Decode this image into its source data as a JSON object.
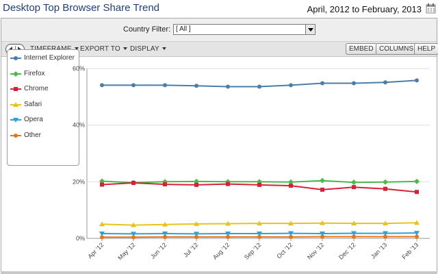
{
  "header": {
    "title": "Desktop Top Browser Share Trend",
    "date_range": "April, 2012 to February, 2013"
  },
  "filter": {
    "label": "Country Filter:",
    "selected": "[ All ]"
  },
  "toolbar": {
    "timeframe": "TIMEFRAME",
    "export": "EXPORT TO",
    "display": "DISPLAY",
    "embed": "EMBED",
    "columns": "COLUMNS",
    "help": "HELP"
  },
  "colors": {
    "Internet Explorer": "#4a7ea8",
    "Firefox": "#4cb848",
    "Chrome": "#d8203a",
    "Safari": "#e8c21e",
    "Opera": "#2ba3d8",
    "Other": "#e5741b"
  },
  "chart_data": {
    "type": "line",
    "title": "",
    "xlabel": "",
    "ylabel": "",
    "ylim": [
      0,
      60
    ],
    "y_ticks": [
      "0%",
      "20%",
      "40%",
      "60%"
    ],
    "grid": true,
    "legend_placement": "left",
    "categories": [
      "Apr '12",
      "May '12",
      "Jun '12",
      "Jul '12",
      "Aug '12",
      "Sep '12",
      "Oct '12",
      "Nov '12",
      "Dec '12",
      "Jan '13",
      "Feb '13"
    ],
    "series": [
      {
        "name": "Internet Explorer",
        "marker": "circle",
        "values": [
          54.1,
          54.1,
          54.1,
          53.9,
          53.6,
          53.6,
          54.1,
          54.8,
          54.8,
          55.1,
          55.8
        ]
      },
      {
        "name": "Firefox",
        "marker": "diamond",
        "values": [
          20.2,
          19.7,
          20.0,
          20.1,
          20.0,
          20.0,
          19.9,
          20.4,
          19.8,
          19.9,
          20.1
        ]
      },
      {
        "name": "Chrome",
        "marker": "square",
        "values": [
          19.0,
          19.6,
          19.1,
          18.9,
          19.2,
          18.9,
          18.6,
          17.2,
          18.1,
          17.5,
          16.4
        ]
      },
      {
        "name": "Safari",
        "marker": "triangle-up",
        "values": [
          5.0,
          4.7,
          4.9,
          5.1,
          5.2,
          5.3,
          5.3,
          5.4,
          5.3,
          5.3,
          5.5
        ]
      },
      {
        "name": "Opera",
        "marker": "triangle-down",
        "values": [
          1.7,
          1.6,
          1.7,
          1.6,
          1.7,
          1.7,
          1.8,
          1.7,
          1.8,
          1.8,
          1.9
        ]
      },
      {
        "name": "Other",
        "marker": "circle",
        "values": [
          0.4,
          0.4,
          0.5,
          0.5,
          0.5,
          0.5,
          0.5,
          0.6,
          0.6,
          0.6,
          0.6
        ]
      }
    ]
  }
}
